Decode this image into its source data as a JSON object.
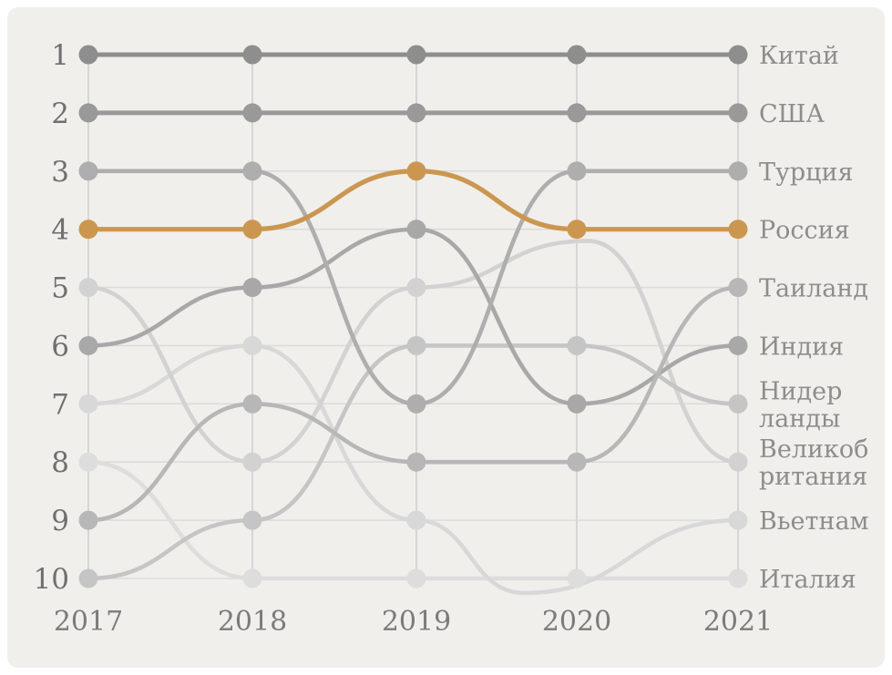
{
  "frame": {
    "card_bg": "#f0efec",
    "page_bg": "#ffffff"
  },
  "chart_data": {
    "type": "line",
    "subtype": "bump-rank-chart",
    "title": "",
    "x_ticks": [
      "2017",
      "2018",
      "2019",
      "2020",
      "2021"
    ],
    "rank_ticks": [
      "1",
      "2",
      "3",
      "4",
      "5",
      "6",
      "7",
      "8",
      "9",
      "10"
    ],
    "ylim": [
      1,
      10
    ],
    "grid": true,
    "legend_position": "right-of-last-point",
    "highlight_series": "Россия",
    "highlight_color": "#cb9750",
    "series": [
      {
        "name": "Китай",
        "label_lines": [
          "Китай"
        ],
        "color": "#8e8e8e",
        "width": 5.0,
        "ranks": [
          1,
          1,
          1,
          1,
          1
        ]
      },
      {
        "name": "США",
        "label_lines": [
          "США"
        ],
        "color": "#999999",
        "width": 5.0,
        "ranks": [
          2,
          2,
          2,
          2,
          2
        ]
      },
      {
        "name": "Турция",
        "label_lines": [
          "Турция"
        ],
        "color": "#aeaeae",
        "width": 4.6,
        "ranks": [
          3,
          3,
          7,
          3,
          3
        ]
      },
      {
        "name": "Россия",
        "label_lines": [
          "Россия"
        ],
        "color": "#cb9750",
        "width": 5.2,
        "ranks": [
          4,
          4,
          3,
          4,
          4
        ]
      },
      {
        "name": "Таиланд",
        "label_lines": [
          "Таиланд"
        ],
        "color": "#b7b7b7",
        "width": 4.6,
        "ranks": [
          9,
          7,
          8,
          8,
          5
        ]
      },
      {
        "name": "Индия",
        "label_lines": [
          "Индия"
        ],
        "color": "#a8a8a8",
        "width": 4.6,
        "ranks": [
          6,
          5,
          4,
          7,
          6
        ]
      },
      {
        "name": "Нидерланды",
        "label_lines": [
          "Нидер",
          "ланды"
        ],
        "color": "#c5c5c5",
        "width": 4.6,
        "ranks": [
          10,
          9,
          6,
          6,
          7
        ]
      },
      {
        "name": "Великобритания",
        "label_lines": [
          "Великоб",
          "ритания"
        ],
        "color": "#d2d2d2",
        "width": 4.6,
        "ranks": [
          5,
          8,
          5,
          null,
          8
        ],
        "gap_bow": {
          "x": 645,
          "rank": 4.2
        }
      },
      {
        "name": "Вьетнам",
        "label_lines": [
          "Вьетнам"
        ],
        "color": "#d8d8d8",
        "width": 4.6,
        "ranks": [
          7,
          6,
          9,
          null,
          9
        ],
        "gap_bow": {
          "x": 575,
          "rank": 10.25
        }
      },
      {
        "name": "Италия",
        "label_lines": [
          "Италия"
        ],
        "color": "#dddddd",
        "width": 4.6,
        "ranks": [
          8,
          10,
          10,
          10,
          10
        ]
      }
    ],
    "draw_order": [
      "Италия",
      "Вьетнам",
      "Великобритания",
      "Нидерланды",
      "Индия",
      "Таиланд",
      "Турция",
      "США",
      "Китай",
      "Россия"
    ],
    "layout_note": "ranks 5 and 9 have no points in 2020"
  }
}
